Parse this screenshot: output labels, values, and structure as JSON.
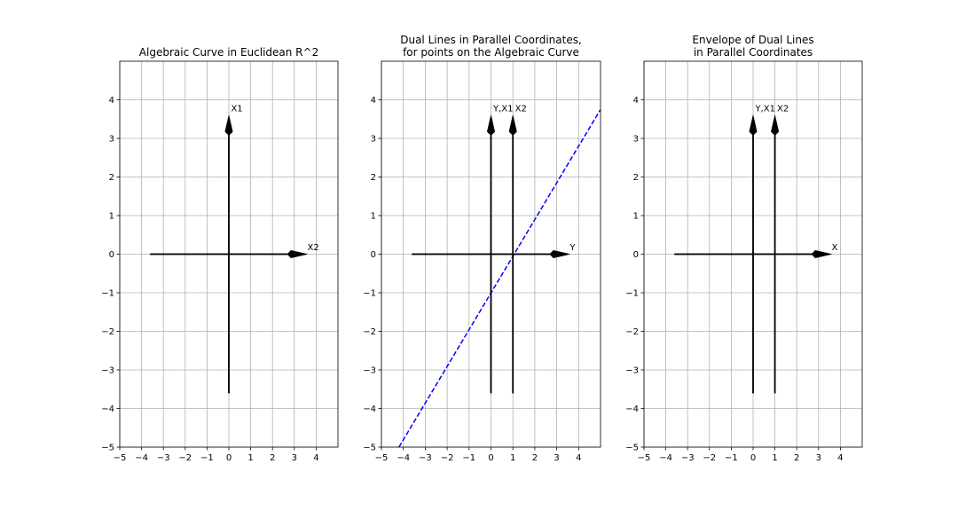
{
  "chart_data": [
    {
      "type": "line",
      "title_lines": [
        "Algebraic Curve in Euclidean R^2"
      ],
      "xlim": [
        -5,
        5
      ],
      "ylim": [
        -5,
        5
      ],
      "xticks": [
        -5,
        -4,
        -3,
        -2,
        -1,
        0,
        1,
        2,
        3,
        4
      ],
      "yticks": [
        -5,
        -4,
        -3,
        -2,
        -1,
        0,
        1,
        2,
        3,
        4
      ],
      "tick_labels_x": [
        "−5",
        "−4",
        "−3",
        "−2",
        "−1",
        "0",
        "1",
        "2",
        "3",
        "4"
      ],
      "tick_labels_y": [
        "−5",
        "−4",
        "−3",
        "−2",
        "−1",
        "0",
        "1",
        "2",
        "3",
        "4"
      ],
      "grid": true,
      "arrows": [
        {
          "from": [
            0,
            -3.6
          ],
          "to": [
            0,
            3.6
          ],
          "label": "X1",
          "label_at": [
            0.1,
            3.7
          ]
        },
        {
          "from": [
            -3.6,
            0
          ],
          "to": [
            3.6,
            0
          ],
          "label": "X2",
          "label_at": [
            3.6,
            0.1
          ]
        }
      ],
      "series": []
    },
    {
      "type": "line",
      "title_lines": [
        "Dual Lines in Parallel Coordinates,",
        "for points on the Algebraic Curve"
      ],
      "xlim": [
        -5,
        5
      ],
      "ylim": [
        -5,
        5
      ],
      "xticks": [
        -5,
        -4,
        -3,
        -2,
        -1,
        0,
        1,
        2,
        3,
        4
      ],
      "yticks": [
        -5,
        -4,
        -3,
        -2,
        -1,
        0,
        1,
        2,
        3,
        4
      ],
      "tick_labels_x": [
        "−5",
        "−4",
        "−3",
        "−2",
        "−1",
        "0",
        "1",
        "2",
        "3",
        "4"
      ],
      "tick_labels_y": [
        "−5",
        "−4",
        "−3",
        "−2",
        "−1",
        "0",
        "1",
        "2",
        "3",
        "4"
      ],
      "grid": true,
      "arrows": [
        {
          "from": [
            0,
            -3.6
          ],
          "to": [
            0,
            3.6
          ],
          "label": "Y,X1",
          "label_at": [
            0.1,
            3.7
          ]
        },
        {
          "from": [
            1,
            -3.6
          ],
          "to": [
            1,
            3.6
          ],
          "label": "X2",
          "label_at": [
            1.1,
            3.7
          ]
        },
        {
          "from": [
            -3.6,
            0
          ],
          "to": [
            3.6,
            0
          ],
          "label": "Y",
          "label_at": [
            3.6,
            0.1
          ]
        }
      ],
      "series": [
        {
          "style": "dashed",
          "color": "#0000ff",
          "x": [
            -4.2,
            5
          ],
          "y": [
            -5.0,
            3.75
          ]
        }
      ]
    },
    {
      "type": "line",
      "title_lines": [
        "Envelope of Dual Lines",
        "in Parallel Coordinates"
      ],
      "xlim": [
        -5,
        5
      ],
      "ylim": [
        -5,
        5
      ],
      "xticks": [
        -5,
        -4,
        -3,
        -2,
        -1,
        0,
        1,
        2,
        3,
        4
      ],
      "yticks": [
        -5,
        -4,
        -3,
        -2,
        -1,
        0,
        1,
        2,
        3,
        4
      ],
      "tick_labels_x": [
        "−5",
        "−4",
        "−3",
        "−2",
        "−1",
        "0",
        "1",
        "2",
        "3",
        "4"
      ],
      "tick_labels_y": [
        "−5",
        "−4",
        "−3",
        "−2",
        "−1",
        "0",
        "1",
        "2",
        "3",
        "4"
      ],
      "grid": true,
      "arrows": [
        {
          "from": [
            0,
            -3.6
          ],
          "to": [
            0,
            3.6
          ],
          "label": "Y,X1",
          "label_at": [
            0.1,
            3.7
          ]
        },
        {
          "from": [
            1,
            -3.6
          ],
          "to": [
            1,
            3.6
          ],
          "label": "X2",
          "label_at": [
            1.1,
            3.7
          ]
        },
        {
          "from": [
            -3.6,
            0
          ],
          "to": [
            3.6,
            0
          ],
          "label": "X",
          "label_at": [
            3.6,
            0.1
          ]
        }
      ],
      "series": []
    }
  ]
}
